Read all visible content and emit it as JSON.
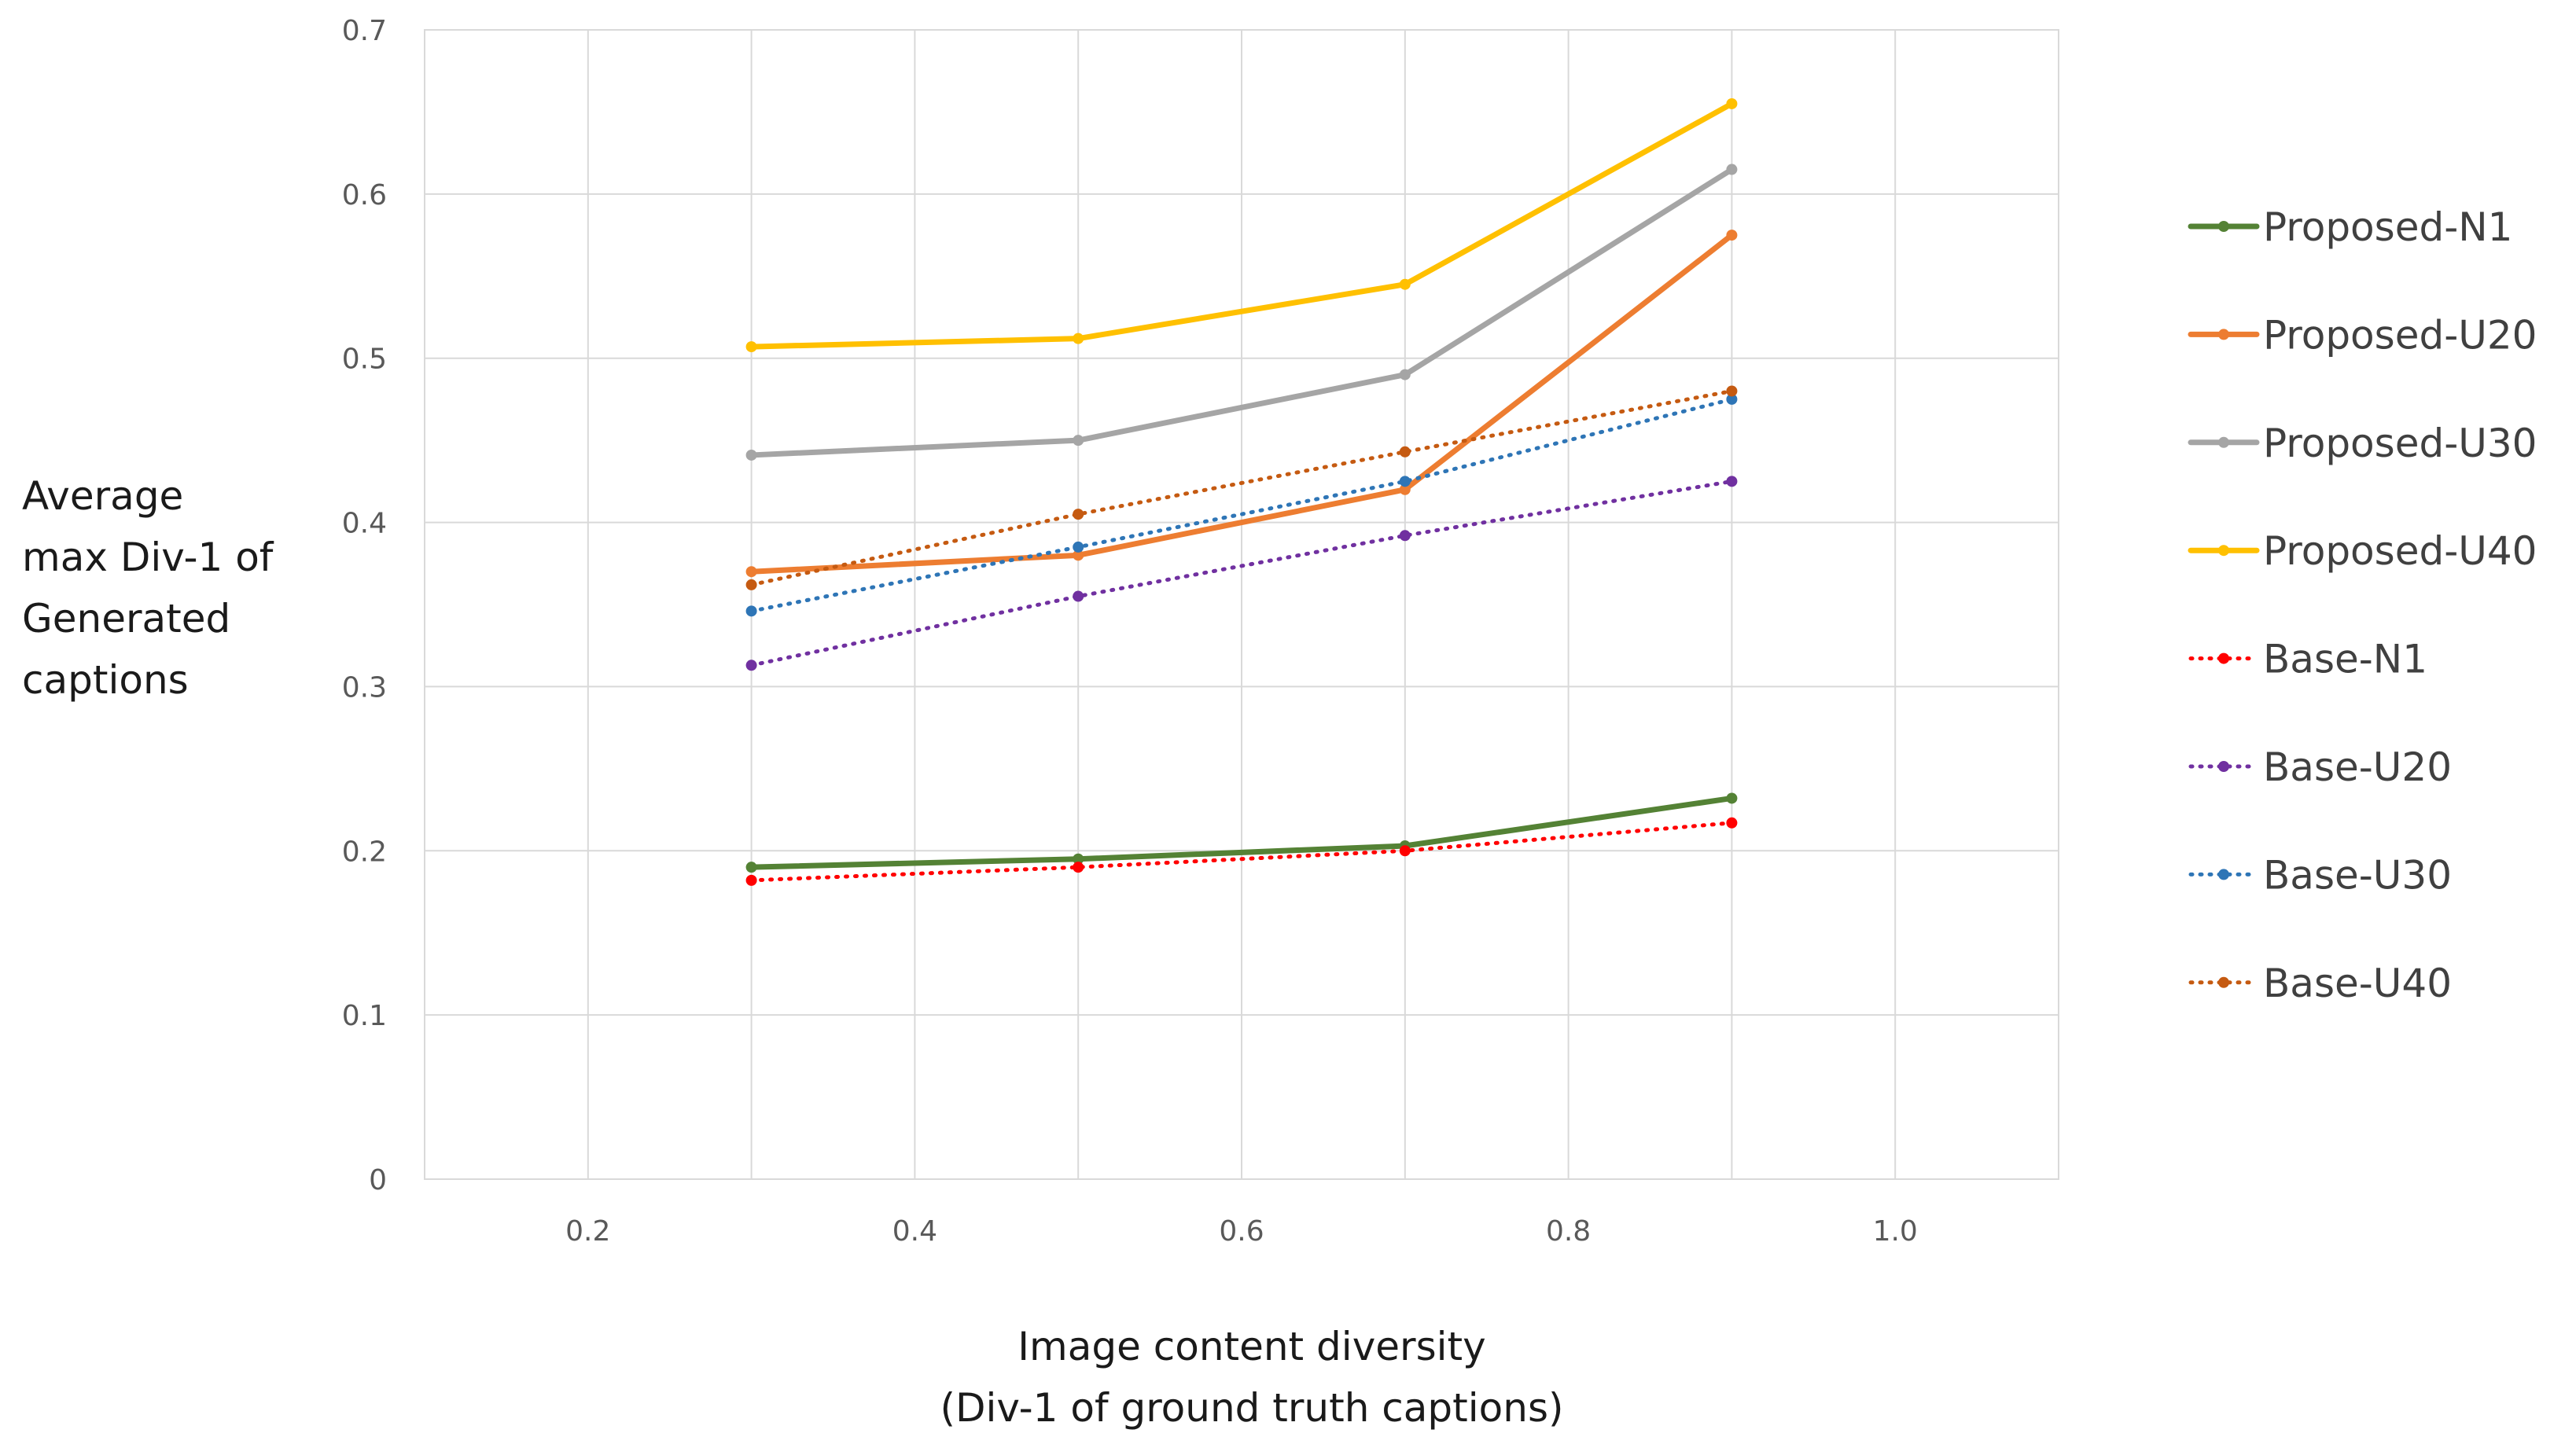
{
  "chart_data": {
    "type": "line",
    "title": "",
    "xlabel": [
      "Image content diversity",
      "(Div-1 of ground truth captions)"
    ],
    "ylabel": [
      "Average",
      "max Div-1 of",
      "Generated",
      "captions"
    ],
    "xlim": [
      0.1,
      1.1
    ],
    "ylim": [
      0,
      0.7
    ],
    "x_ticks": [
      0.2,
      0.4,
      0.6,
      0.8,
      1.0
    ],
    "x_tick_labels": [
      "0.2",
      "0.4",
      "0.6",
      "0.8",
      "1.0"
    ],
    "y_ticks": [
      0,
      0.1,
      0.2,
      0.3,
      0.4,
      0.5,
      0.6,
      0.7
    ],
    "y_tick_labels": [
      "0",
      "0.1",
      "0.2",
      "0.3",
      "0.4",
      "0.5",
      "0.6",
      "0.7"
    ],
    "grid": true,
    "legend_position": "right",
    "x": [
      0.3,
      0.5,
      0.7,
      0.9
    ],
    "series": [
      {
        "name": "Proposed-N1",
        "values": [
          0.19,
          0.195,
          0.203,
          0.232
        ],
        "color": "#548235",
        "style": "solid"
      },
      {
        "name": "Proposed-U20",
        "values": [
          0.37,
          0.38,
          0.42,
          0.575
        ],
        "color": "#ED7D31",
        "style": "solid"
      },
      {
        "name": "Proposed-U30",
        "values": [
          0.441,
          0.45,
          0.49,
          0.615
        ],
        "color": "#A5A5A5",
        "style": "solid"
      },
      {
        "name": "Proposed-U40",
        "values": [
          0.507,
          0.512,
          0.545,
          0.655
        ],
        "color": "#FFC000",
        "style": "solid"
      },
      {
        "name": "Base-N1",
        "values": [
          0.182,
          0.19,
          0.2,
          0.217
        ],
        "color": "#FF0000",
        "style": "dotted"
      },
      {
        "name": "Base-U20",
        "values": [
          0.313,
          0.355,
          0.392,
          0.425
        ],
        "color": "#7030A0",
        "style": "dotted"
      },
      {
        "name": "Base-U30",
        "values": [
          0.346,
          0.385,
          0.425,
          0.475
        ],
        "color": "#2E75B6",
        "style": "dotted"
      },
      {
        "name": "Base-U40",
        "values": [
          0.362,
          0.405,
          0.443,
          0.48
        ],
        "color": "#C55A11",
        "style": "dotted"
      }
    ]
  }
}
